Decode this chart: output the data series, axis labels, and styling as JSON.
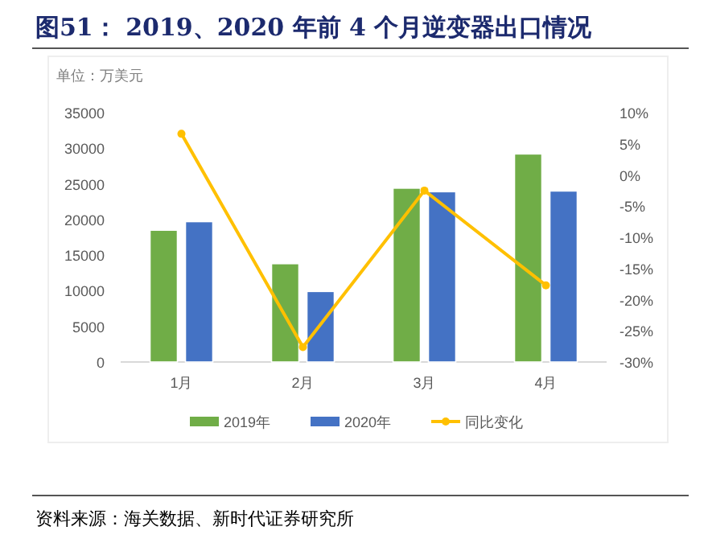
{
  "chart_data": {
    "type": "bar",
    "title": "图51：  2019、2020 年前 4 个月逆变器出口情况",
    "ylabel": "单位：万美元",
    "annotations": [
      "资料来源：海关数据、新时代证券研究所"
    ],
    "categories": [
      "1月",
      "2月",
      "3月",
      "4月"
    ],
    "series": [
      {
        "name": "2019年",
        "color": "#70ad47",
        "values": [
          18500,
          13800,
          24400,
          29200
        ]
      },
      {
        "name": "2020年",
        "color": "#4472c4",
        "values": [
          19700,
          9900,
          23900,
          24000
        ]
      },
      {
        "name": "同比变化",
        "type": "line",
        "axis": "y2",
        "color": "#ffc000",
        "values": [
          6.6,
          -27.6,
          -2.5,
          -17.7
        ]
      }
    ],
    "ylim": [
      0,
      35000
    ],
    "yticks": [
      0,
      5000,
      10000,
      15000,
      20000,
      25000,
      30000,
      35000
    ],
    "y2lim": [
      -30,
      10
    ],
    "y2ticks": [
      {
        "value": 10,
        "label": "10%"
      },
      {
        "value": 5,
        "label": "5%"
      },
      {
        "value": 0,
        "label": "0%"
      },
      {
        "value": -5,
        "label": "-5%"
      },
      {
        "value": -10,
        "label": "-10%"
      },
      {
        "value": -15,
        "label": "-15%"
      },
      {
        "value": -20,
        "label": "-20%"
      },
      {
        "value": -25,
        "label": "-25%"
      },
      {
        "value": -30,
        "label": "-30%"
      }
    ],
    "grid": false,
    "legend": "bottom",
    "marker": "circle"
  }
}
